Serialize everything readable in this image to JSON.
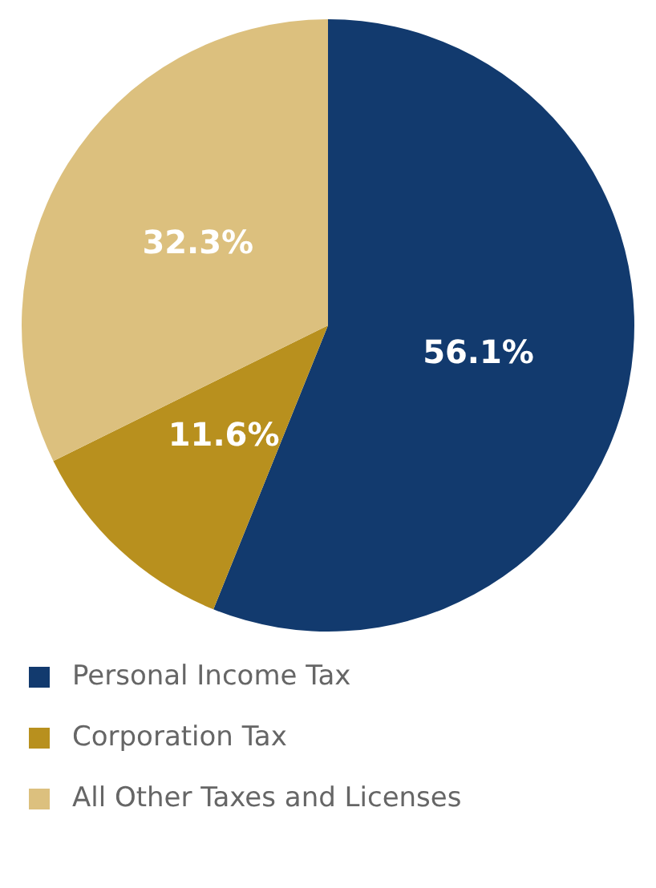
{
  "chart_data": {
    "type": "pie",
    "categories": [
      "Personal Income Tax",
      "Corporation Tax",
      "All Other Taxes and Licenses"
    ],
    "values": [
      56.1,
      11.6,
      32.3
    ],
    "colors": [
      "#123a6e",
      "#b8901e",
      "#dcc07e"
    ],
    "value_labels": [
      "56.1%",
      "11.6%",
      "32.3%"
    ],
    "legend": "bottom"
  }
}
